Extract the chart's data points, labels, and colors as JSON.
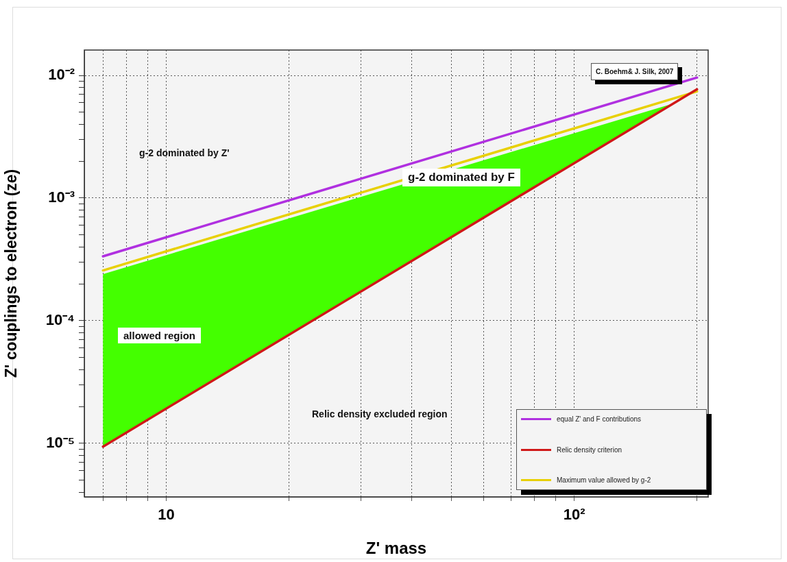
{
  "chart_data": {
    "type": "line",
    "xlabel": "Z' mass",
    "ylabel": "Z' couplings to electron (ze)",
    "log": "xy",
    "xlim": [
      6.3,
      213
    ],
    "ylim": [
      3.66e-06,
      0.0161
    ],
    "xticks": [
      {
        "value": 7,
        "label": null
      },
      {
        "value": 8,
        "label": null
      },
      {
        "value": 9,
        "label": null
      },
      10,
      {
        "value": 20,
        "label": null
      },
      {
        "value": 30,
        "label": null
      },
      {
        "value": 40,
        "label": null
      },
      {
        "value": 50,
        "label": null
      },
      {
        "value": 60,
        "label": null
      },
      {
        "value": 70,
        "label": null
      },
      {
        "value": 80,
        "label": null
      },
      {
        "value": 90,
        "label": null
      },
      {
        "value": 100,
        "label": "10²"
      },
      {
        "value": 200,
        "label": null
      }
    ],
    "yticks": [
      {
        "value": 4e-06,
        "label": null
      },
      {
        "value": 5e-06,
        "label": null
      },
      {
        "value": 6e-06,
        "label": null
      },
      {
        "value": 7e-06,
        "label": null
      },
      {
        "value": 8e-06,
        "label": null
      },
      {
        "value": 9e-06,
        "label": null
      },
      {
        "value": 1e-05,
        "label": "10⁻⁵"
      },
      {
        "value": 2e-05,
        "label": null
      },
      {
        "value": 3e-05,
        "label": null
      },
      {
        "value": 4e-05,
        "label": null
      },
      {
        "value": 5e-05,
        "label": null
      },
      {
        "value": 6e-05,
        "label": null
      },
      {
        "value": 7e-05,
        "label": null
      },
      {
        "value": 8e-05,
        "label": null
      },
      {
        "value": 9e-05,
        "label": null
      },
      {
        "value": 0.0001,
        "label": "10⁻⁴"
      },
      {
        "value": 0.0002,
        "label": null
      },
      {
        "value": 0.0003,
        "label": null
      },
      {
        "value": 0.0004,
        "label": null
      },
      {
        "value": 0.0005,
        "label": null
      },
      {
        "value": 0.0006,
        "label": null
      },
      {
        "value": 0.0007,
        "label": null
      },
      {
        "value": 0.0008,
        "label": null
      },
      {
        "value": 0.0009,
        "label": null
      },
      {
        "value": 0.001,
        "label": "10⁻³"
      },
      {
        "value": 0.002,
        "label": null
      },
      {
        "value": 0.003,
        "label": null
      },
      {
        "value": 0.004,
        "label": null
      },
      {
        "value": 0.005,
        "label": null
      },
      {
        "value": 0.006,
        "label": null
      },
      {
        "value": 0.007,
        "label": null
      },
      {
        "value": 0.008,
        "label": null
      },
      {
        "value": 0.009,
        "label": null
      },
      {
        "value": 0.01,
        "label": "10⁻²"
      }
    ],
    "grid": true,
    "legend": "bottom right",
    "marker": "none",
    "line_style": "solid",
    "series": [
      {
        "type": "area",
        "color": "#44ff00",
        "x": [
          7,
          175
        ],
        "values": [
          0.00024,
          0.0059
        ]
      },
      {
        "name": "equal Z' and F contributions",
        "color": "#b030e0",
        "x": [
          7,
          200
        ],
        "values": [
          0.000335,
          0.0096
        ]
      },
      {
        "name": "Relic density criterion",
        "color": "#d01818",
        "x": [
          7,
          200
        ],
        "values": [
          9.4e-06,
          0.0077
        ]
      },
      {
        "name": "Maximum value allowed by g-2",
        "color": "#e8d000",
        "x": [
          7,
          200
        ],
        "values": [
          0.000257,
          0.0074
        ]
      }
    ],
    "annotations": [
      "g-2 dominated by Z'",
      "g-2 dominated by F",
      "allowed region",
      "Relic density excluded region",
      "C. Boehm& J. Silk, 2007"
    ]
  }
}
